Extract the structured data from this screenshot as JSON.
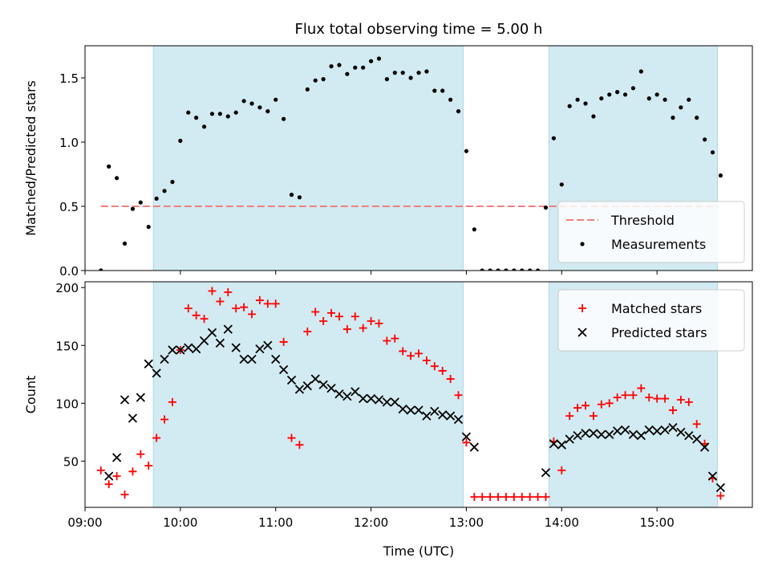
{
  "title": "Flux total observing time = 5.00 h",
  "colors": {
    "shade": "#add8e6",
    "threshold": "#f08080",
    "measurements": "#000000",
    "matched": "#ff0000",
    "predicted": "#000000"
  },
  "chart_data": [
    {
      "type": "scatter",
      "panel": "top",
      "ylabel": "Matched/Predicted stars",
      "ylim": [
        0,
        1.75
      ],
      "yticks": [
        0.0,
        0.5,
        1.0,
        1.5
      ],
      "ytick_labels": [
        "0.0",
        "0.5",
        "1.0",
        "1.5"
      ],
      "xlim": [
        "09:00",
        "16:00"
      ],
      "grid": false,
      "legend_position": "lower-right",
      "shaded_intervals": [
        [
          "09:43",
          "12:58"
        ],
        [
          "13:52",
          "15:38"
        ]
      ],
      "threshold": {
        "name": "Threshold",
        "value": 0.5,
        "x_range": [
          "09:10",
          "15:38"
        ],
        "style": "dashed"
      },
      "series": [
        {
          "name": "Measurements",
          "marker": "dot",
          "points": [
            [
              "09:10",
              0.0
            ],
            [
              "09:15",
              0.81
            ],
            [
              "09:20",
              0.72
            ],
            [
              "09:25",
              0.21
            ],
            [
              "09:30",
              0.48
            ],
            [
              "09:35",
              0.53
            ],
            [
              "09:40",
              0.34
            ],
            [
              "09:45",
              0.56
            ],
            [
              "09:50",
              0.62
            ],
            [
              "09:55",
              0.69
            ],
            [
              "10:00",
              1.01
            ],
            [
              "10:05",
              1.23
            ],
            [
              "10:10",
              1.19
            ],
            [
              "10:15",
              1.12
            ],
            [
              "10:20",
              1.22
            ],
            [
              "10:25",
              1.22
            ],
            [
              "10:30",
              1.2
            ],
            [
              "10:35",
              1.23
            ],
            [
              "10:40",
              1.32
            ],
            [
              "10:45",
              1.3
            ],
            [
              "10:50",
              1.27
            ],
            [
              "10:55",
              1.24
            ],
            [
              "11:00",
              1.33
            ],
            [
              "11:05",
              1.18
            ],
            [
              "11:10",
              0.59
            ],
            [
              "11:15",
              0.57
            ],
            [
              "11:20",
              1.41
            ],
            [
              "11:25",
              1.48
            ],
            [
              "11:30",
              1.49
            ],
            [
              "11:35",
              1.59
            ],
            [
              "11:40",
              1.6
            ],
            [
              "11:45",
              1.53
            ],
            [
              "11:50",
              1.58
            ],
            [
              "11:55",
              1.58
            ],
            [
              "12:00",
              1.63
            ],
            [
              "12:05",
              1.65
            ],
            [
              "12:10",
              1.49
            ],
            [
              "12:15",
              1.54
            ],
            [
              "12:20",
              1.54
            ],
            [
              "12:25",
              1.5
            ],
            [
              "12:30",
              1.54
            ],
            [
              "12:35",
              1.55
            ],
            [
              "12:40",
              1.4
            ],
            [
              "12:45",
              1.4
            ],
            [
              "12:50",
              1.33
            ],
            [
              "12:55",
              1.24
            ],
            [
              "13:00",
              0.93
            ],
            [
              "13:05",
              0.32
            ],
            [
              "13:10",
              0.0
            ],
            [
              "13:15",
              0.0
            ],
            [
              "13:20",
              0.0
            ],
            [
              "13:25",
              0.0
            ],
            [
              "13:30",
              0.0
            ],
            [
              "13:35",
              0.0
            ],
            [
              "13:40",
              0.0
            ],
            [
              "13:45",
              0.0
            ],
            [
              "13:50",
              0.49
            ],
            [
              "13:55",
              1.03
            ],
            [
              "14:00",
              0.67
            ],
            [
              "14:05",
              1.28
            ],
            [
              "14:10",
              1.33
            ],
            [
              "14:15",
              1.3
            ],
            [
              "14:20",
              1.2
            ],
            [
              "14:25",
              1.34
            ],
            [
              "14:30",
              1.37
            ],
            [
              "14:35",
              1.39
            ],
            [
              "14:40",
              1.37
            ],
            [
              "14:45",
              1.42
            ],
            [
              "14:50",
              1.55
            ],
            [
              "14:55",
              1.34
            ],
            [
              "15:00",
              1.37
            ],
            [
              "15:05",
              1.33
            ],
            [
              "15:10",
              1.19
            ],
            [
              "15:15",
              1.27
            ],
            [
              "15:20",
              1.33
            ],
            [
              "15:25",
              1.19
            ],
            [
              "15:30",
              1.02
            ],
            [
              "15:35",
              0.92
            ],
            [
              "15:40",
              0.74
            ]
          ]
        }
      ]
    },
    {
      "type": "scatter",
      "panel": "bottom",
      "ylabel": "Count",
      "xlabel": "Time (UTC)",
      "ylim": [
        10,
        205
      ],
      "yticks": [
        50,
        100,
        150,
        200
      ],
      "ytick_labels": [
        "50",
        "100",
        "150",
        "200"
      ],
      "xlim": [
        "09:00",
        "16:00"
      ],
      "xticks": [
        "09:00",
        "10:00",
        "11:00",
        "12:00",
        "13:00",
        "14:00",
        "15:00"
      ],
      "xtick_labels": [
        "09:00",
        "10:00",
        "11:00",
        "12:00",
        "13:00",
        "14:00",
        "15:00"
      ],
      "grid": false,
      "legend_position": "upper-right",
      "shaded_intervals": [
        [
          "09:43",
          "12:58"
        ],
        [
          "13:52",
          "15:38"
        ]
      ],
      "series": [
        {
          "name": "Matched stars",
          "marker": "plus",
          "points": [
            [
              "09:10",
              42
            ],
            [
              "09:15",
              30
            ],
            [
              "09:20",
              37
            ],
            [
              "09:25",
              21
            ],
            [
              "09:30",
              41
            ],
            [
              "09:35",
              56
            ],
            [
              "09:40",
              46
            ],
            [
              "09:45",
              70
            ],
            [
              "09:50",
              86
            ],
            [
              "09:55",
              101
            ],
            [
              "10:00",
              146
            ],
            [
              "10:05",
              182
            ],
            [
              "10:10",
              176
            ],
            [
              "10:15",
              173
            ],
            [
              "10:20",
              197
            ],
            [
              "10:25",
              188
            ],
            [
              "10:30",
              196
            ],
            [
              "10:35",
              182
            ],
            [
              "10:40",
              183
            ],
            [
              "10:45",
              177
            ],
            [
              "10:50",
              189
            ],
            [
              "10:55",
              186
            ],
            [
              "11:00",
              186
            ],
            [
              "11:05",
              153
            ],
            [
              "11:10",
              70
            ],
            [
              "11:15",
              64
            ],
            [
              "11:20",
              162
            ],
            [
              "11:25",
              179
            ],
            [
              "11:30",
              171
            ],
            [
              "11:35",
              178
            ],
            [
              "11:40",
              175
            ],
            [
              "11:45",
              164
            ],
            [
              "11:50",
              175
            ],
            [
              "11:55",
              165
            ],
            [
              "12:00",
              171
            ],
            [
              "12:05",
              169
            ],
            [
              "12:10",
              154
            ],
            [
              "12:15",
              156
            ],
            [
              "12:20",
              145
            ],
            [
              "12:25",
              141
            ],
            [
              "12:30",
              143
            ],
            [
              "12:35",
              137
            ],
            [
              "12:40",
              132
            ],
            [
              "12:45",
              128
            ],
            [
              "12:50",
              121
            ],
            [
              "12:55",
              107
            ],
            [
              "13:00",
              66
            ],
            [
              "13:05",
              19
            ],
            [
              "13:10",
              19
            ],
            [
              "13:15",
              19
            ],
            [
              "13:20",
              19
            ],
            [
              "13:25",
              19
            ],
            [
              "13:30",
              19
            ],
            [
              "13:35",
              19
            ],
            [
              "13:40",
              19
            ],
            [
              "13:45",
              19
            ],
            [
              "13:50",
              19
            ],
            [
              "13:55",
              67
            ],
            [
              "14:00",
              42
            ],
            [
              "14:05",
              89
            ],
            [
              "14:10",
              96
            ],
            [
              "14:15",
              98
            ],
            [
              "14:20",
              89
            ],
            [
              "14:25",
              99
            ],
            [
              "14:30",
              100
            ],
            [
              "14:35",
              105
            ],
            [
              "14:40",
              107
            ],
            [
              "14:45",
              107
            ],
            [
              "14:50",
              113
            ],
            [
              "14:55",
              105
            ],
            [
              "15:00",
              104
            ],
            [
              "15:05",
              104
            ],
            [
              "15:10",
              94
            ],
            [
              "15:15",
              103
            ],
            [
              "15:20",
              101
            ],
            [
              "15:25",
              82
            ],
            [
              "15:30",
              65
            ],
            [
              "15:35",
              35
            ],
            [
              "15:40",
              20
            ]
          ]
        },
        {
          "name": "Predicted stars",
          "marker": "x",
          "points": [
            [
              "09:15",
              37
            ],
            [
              "09:20",
              53
            ],
            [
              "09:25",
              103
            ],
            [
              "09:30",
              87
            ],
            [
              "09:35",
              105
            ],
            [
              "09:40",
              134
            ],
            [
              "09:45",
              126
            ],
            [
              "09:50",
              138
            ],
            [
              "09:55",
              146
            ],
            [
              "10:00",
              146
            ],
            [
              "10:05",
              148
            ],
            [
              "10:10",
              147
            ],
            [
              "10:15",
              154
            ],
            [
              "10:20",
              161
            ],
            [
              "10:25",
              152
            ],
            [
              "10:30",
              164
            ],
            [
              "10:35",
              148
            ],
            [
              "10:40",
              138
            ],
            [
              "10:45",
              138
            ],
            [
              "10:50",
              147
            ],
            [
              "10:55",
              150
            ],
            [
              "11:00",
              138
            ],
            [
              "11:05",
              129
            ],
            [
              "11:10",
              120
            ],
            [
              "11:15",
              112
            ],
            [
              "11:20",
              115
            ],
            [
              "11:25",
              121
            ],
            [
              "11:30",
              116
            ],
            [
              "11:35",
              113
            ],
            [
              "11:40",
              108
            ],
            [
              "11:45",
              106
            ],
            [
              "11:50",
              110
            ],
            [
              "11:55",
              104
            ],
            [
              "12:00",
              104
            ],
            [
              "12:05",
              103
            ],
            [
              "12:10",
              101
            ],
            [
              "12:15",
              101
            ],
            [
              "12:20",
              95
            ],
            [
              "12:25",
              94
            ],
            [
              "12:30",
              94
            ],
            [
              "12:35",
              89
            ],
            [
              "12:40",
              93
            ],
            [
              "12:45",
              90
            ],
            [
              "12:50",
              89
            ],
            [
              "12:55",
              86
            ],
            [
              "13:00",
              71
            ],
            [
              "13:05",
              62
            ],
            [
              "13:50",
              40
            ],
            [
              "13:55",
              65
            ],
            [
              "14:00",
              64
            ],
            [
              "14:05",
              69
            ],
            [
              "14:10",
              72
            ],
            [
              "14:15",
              74
            ],
            [
              "14:20",
              74
            ],
            [
              "14:25",
              73
            ],
            [
              "14:30",
              73
            ],
            [
              "14:35",
              76
            ],
            [
              "14:40",
              77
            ],
            [
              "14:45",
              73
            ],
            [
              "14:50",
              72
            ],
            [
              "14:55",
              77
            ],
            [
              "15:00",
              76
            ],
            [
              "15:05",
              77
            ],
            [
              "15:10",
              79
            ],
            [
              "15:15",
              75
            ],
            [
              "15:20",
              72
            ],
            [
              "15:25",
              69
            ],
            [
              "15:30",
              62
            ],
            [
              "15:35",
              37
            ],
            [
              "15:40",
              27
            ]
          ]
        }
      ]
    }
  ]
}
